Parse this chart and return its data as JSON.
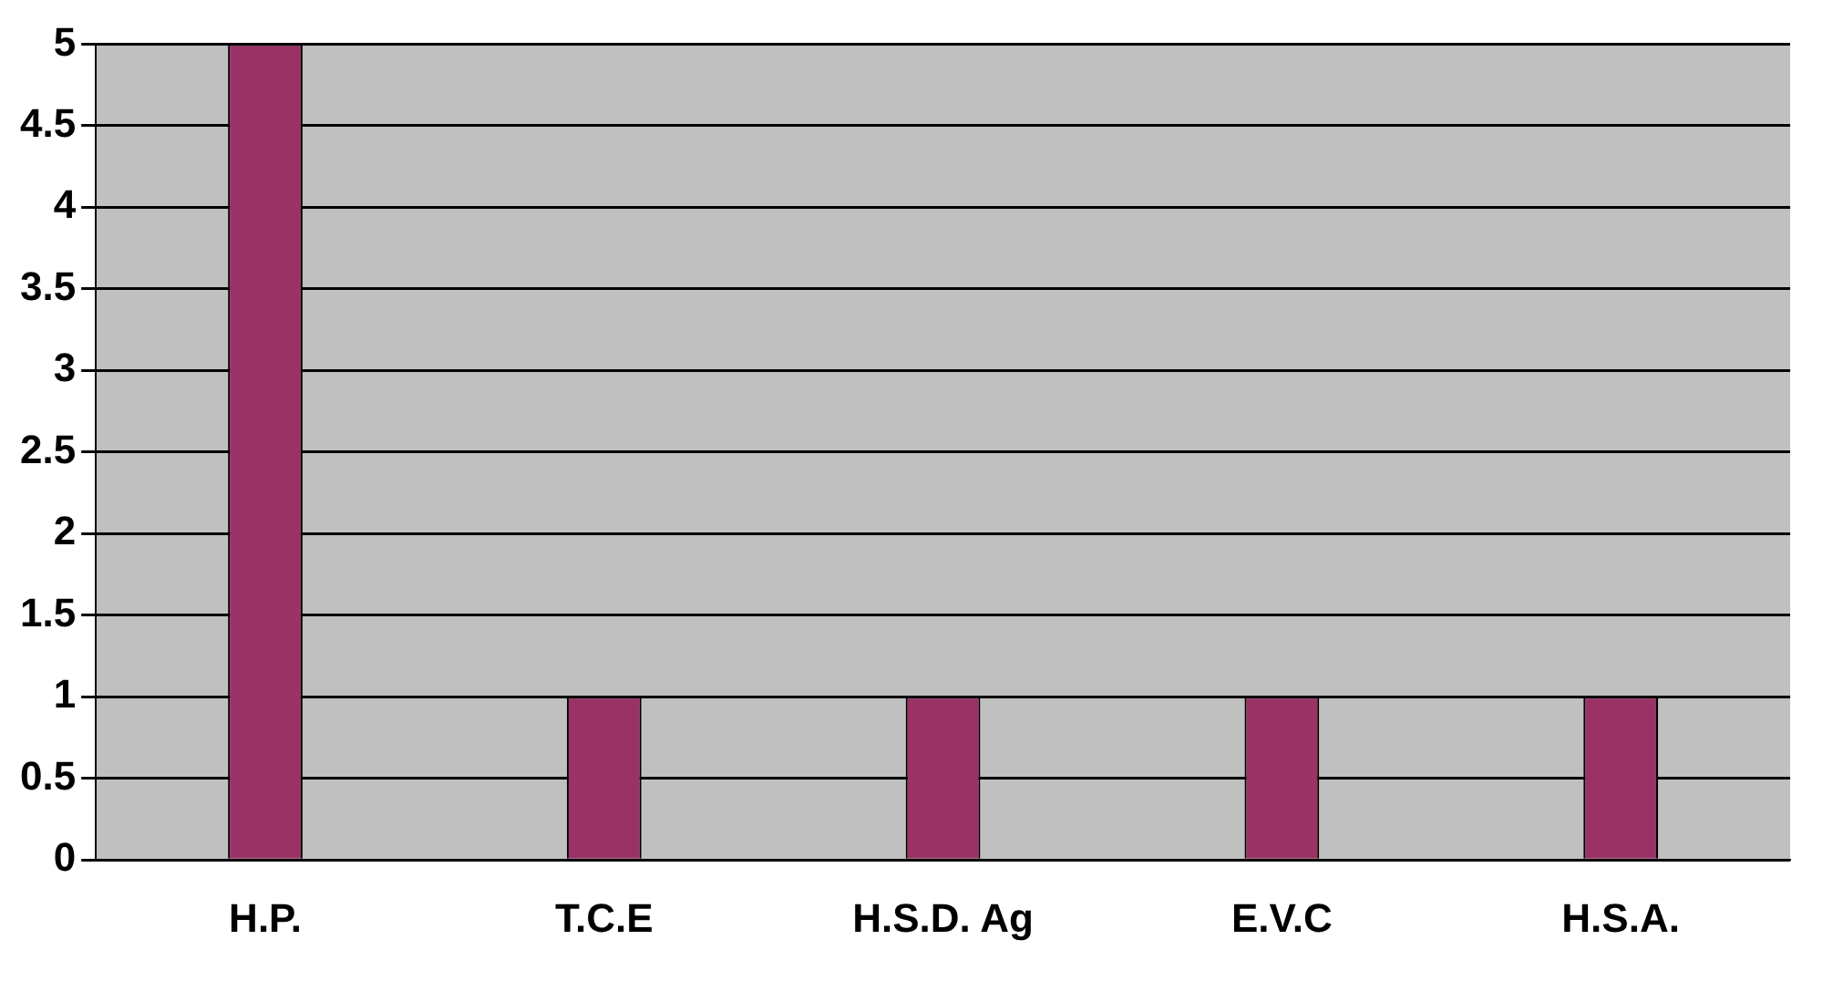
{
  "chart_data": {
    "type": "bar",
    "categories": [
      "H.P.",
      "T.C.E",
      "H.S.D. Ag",
      "E.V.C",
      "H.S.A."
    ],
    "values": [
      5,
      1,
      1,
      1,
      1
    ],
    "color": "#993366",
    "ylim": [
      0,
      5
    ],
    "yticks": [
      0,
      0.5,
      1,
      1.5,
      2,
      2.5,
      3,
      3.5,
      4,
      4.5,
      5
    ],
    "grid": "y",
    "legend": false
  }
}
